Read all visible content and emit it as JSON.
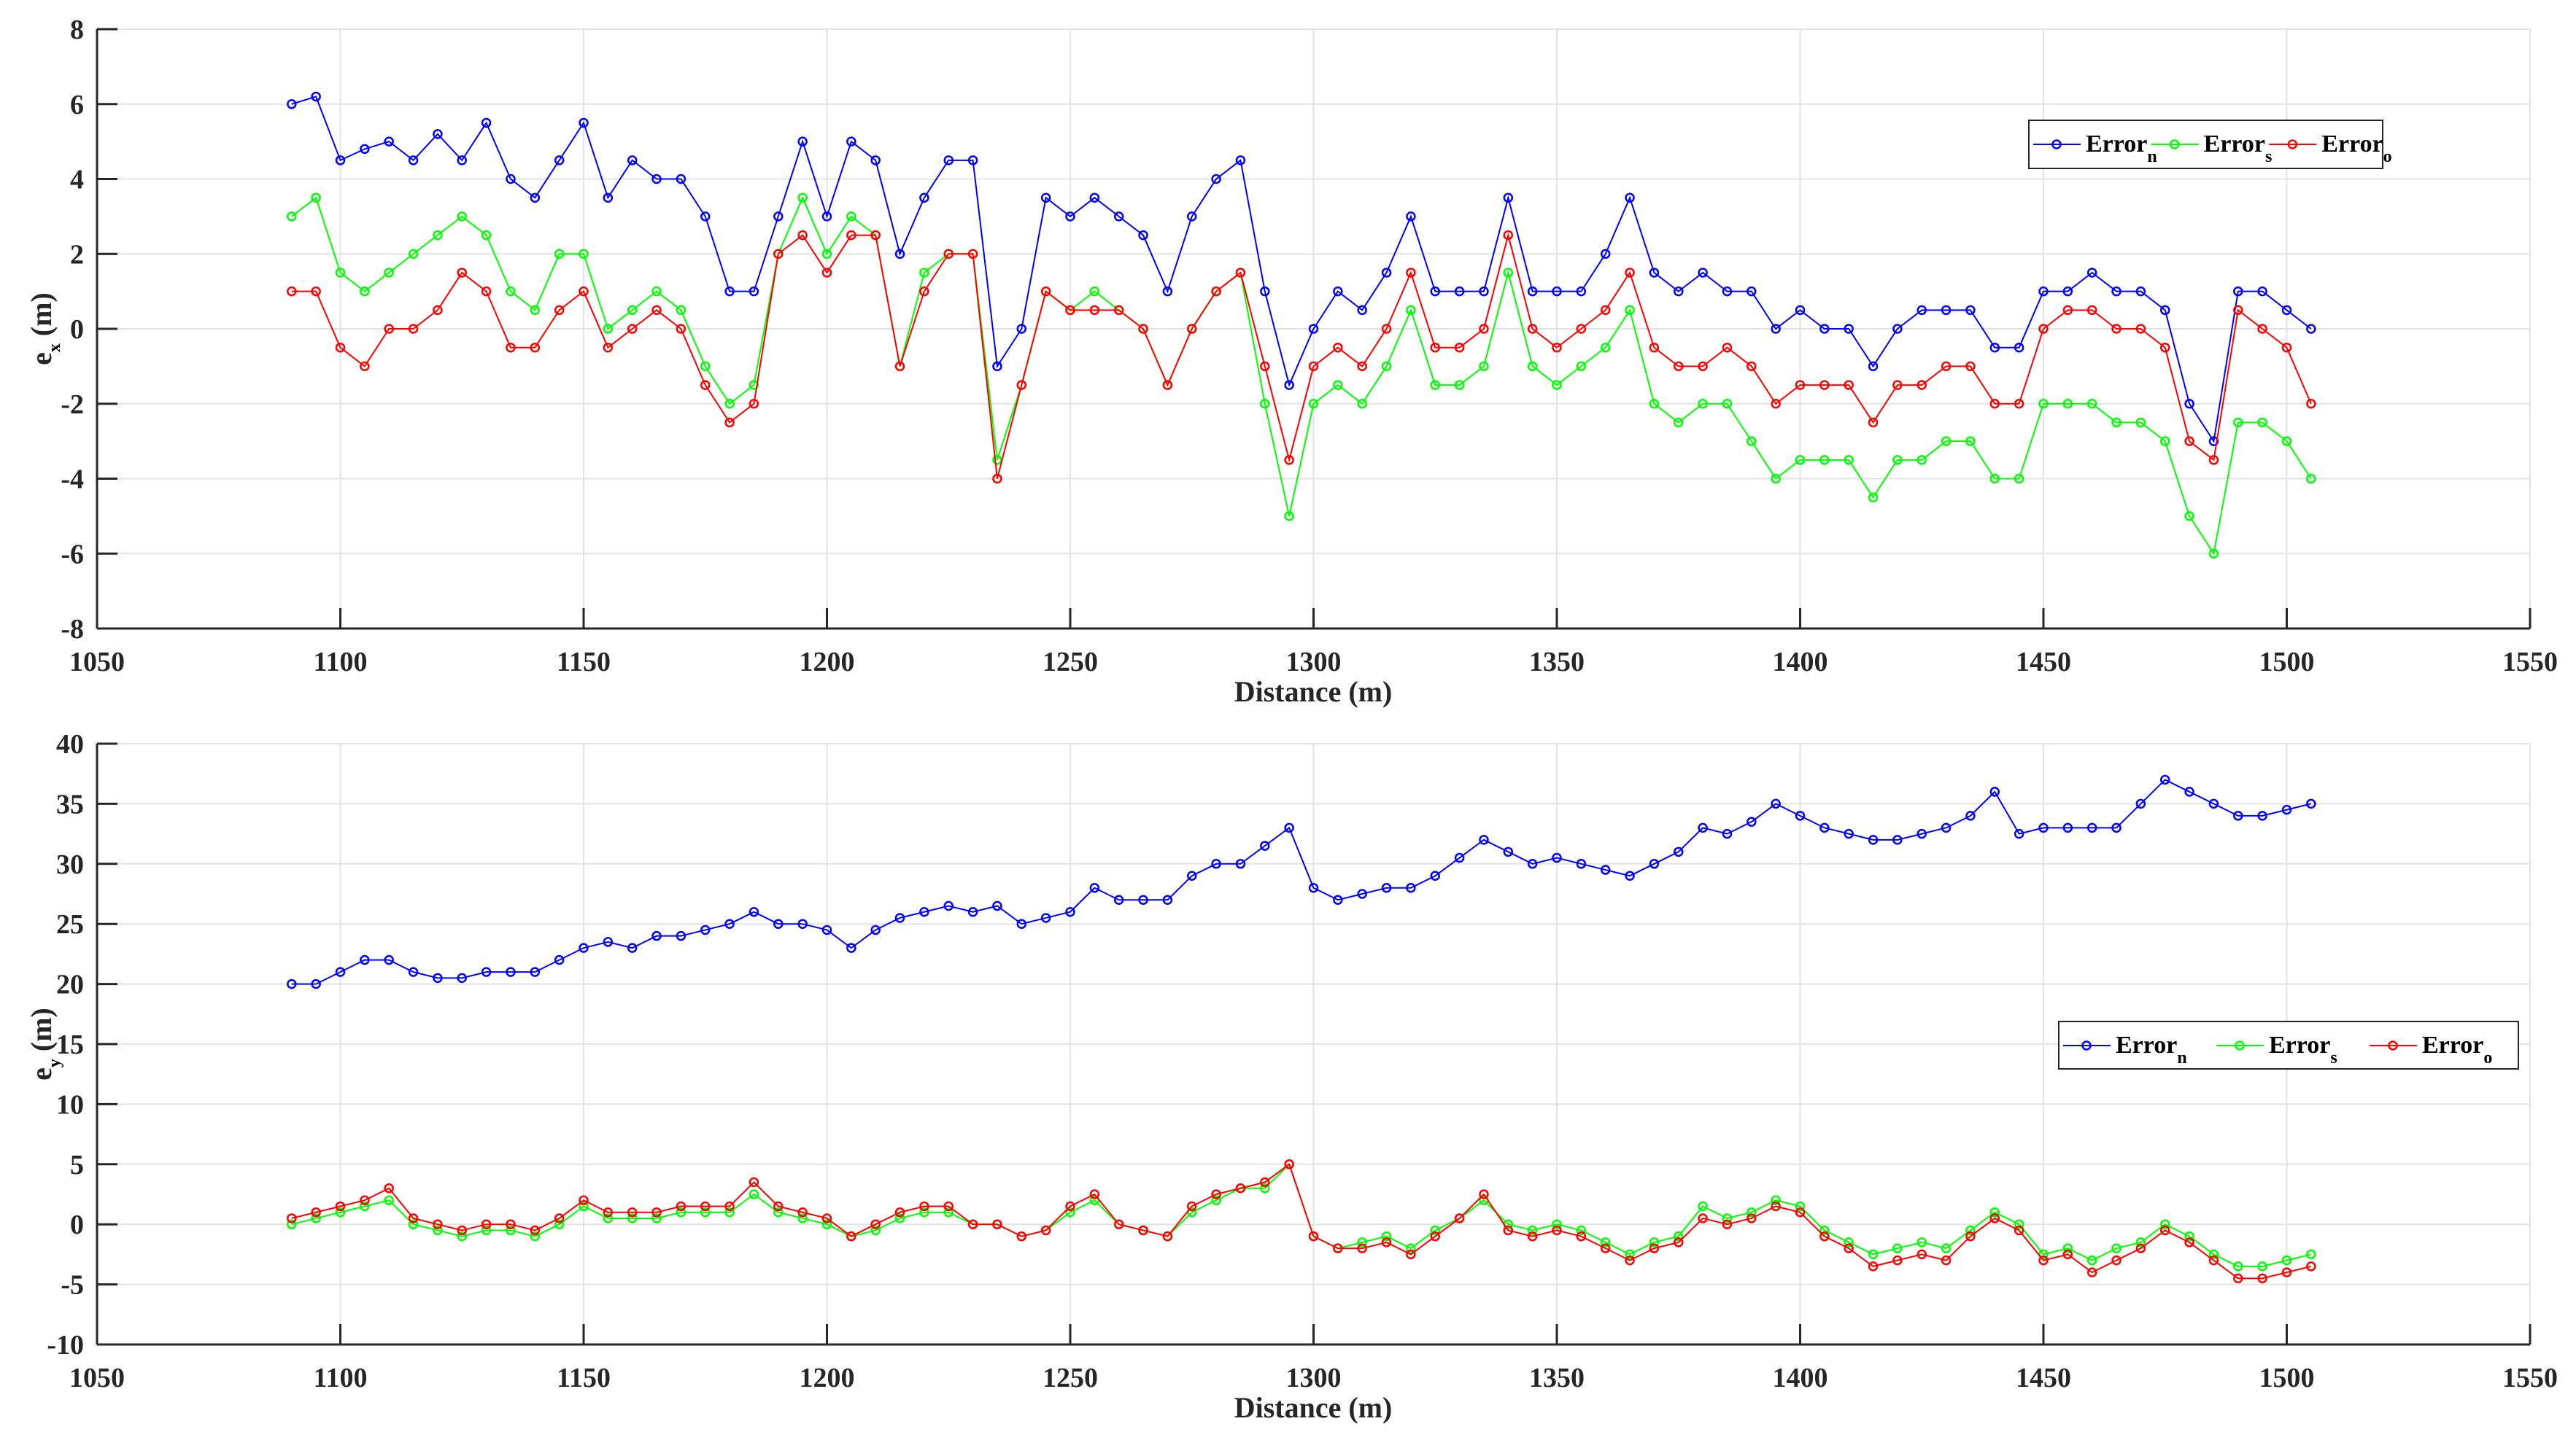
{
  "chart_data": [
    {
      "type": "line",
      "xlabel": "Distance (m)",
      "ylabel": "e",
      "ylabel_sub": "x",
      "ylabel_unit": "(m)",
      "xlim": [
        1050,
        1550
      ],
      "ylim": [
        -8,
        8
      ],
      "xticks": [
        1050,
        1100,
        1150,
        1200,
        1250,
        1300,
        1350,
        1400,
        1450,
        1500,
        1550
      ],
      "yticks": [
        -8,
        -6,
        -4,
        -2,
        0,
        2,
        4,
        6,
        8
      ],
      "grid": true,
      "legend_placement": "top-right",
      "x": [
        1090,
        1095,
        1100,
        1105,
        1110,
        1115,
        1120,
        1125,
        1130,
        1135,
        1140,
        1145,
        1150,
        1155,
        1160,
        1165,
        1170,
        1175,
        1180,
        1185,
        1190,
        1195,
        1200,
        1205,
        1210,
        1215,
        1220,
        1225,
        1230,
        1235,
        1240,
        1245,
        1250,
        1255,
        1260,
        1265,
        1270,
        1275,
        1280,
        1285,
        1290,
        1295,
        1300,
        1305,
        1310,
        1315,
        1320,
        1325,
        1330,
        1335,
        1340,
        1345,
        1350,
        1355,
        1360,
        1365,
        1370,
        1375,
        1380,
        1385,
        1390,
        1395,
        1400,
        1405,
        1410,
        1415,
        1420,
        1425,
        1430,
        1435,
        1440,
        1445,
        1450,
        1455,
        1460,
        1465,
        1470,
        1475,
        1480,
        1485,
        1490,
        1495,
        1500,
        1505
      ],
      "series": [
        {
          "name": "Error",
          "sub": "n",
          "color": "#0000ff",
          "values": [
            6,
            6.2,
            4.5,
            4.8,
            5,
            4.5,
            5.2,
            4.5,
            5.5,
            4,
            3.5,
            4.5,
            5.5,
            3.5,
            4.5,
            4,
            4,
            3,
            1,
            1,
            3,
            5,
            3,
            5,
            4.5,
            2,
            3.5,
            4.5,
            4.5,
            -1,
            0,
            3.5,
            3,
            3.5,
            3,
            2.5,
            1,
            3,
            4,
            4.5,
            1,
            -1.5,
            0,
            1,
            0.5,
            1.5,
            3,
            1,
            1,
            1,
            3.5,
            1,
            1,
            1,
            2,
            3.5,
            1.5,
            1,
            1.5,
            1,
            1,
            0,
            0.5,
            0,
            0,
            -1,
            0,
            0.5,
            0.5,
            0.5,
            -0.5,
            -0.5,
            1,
            1,
            1.5,
            1,
            1,
            0.5,
            -2,
            -3,
            1,
            1,
            0.5,
            0
          ]
        },
        {
          "name": "Error",
          "sub": "s",
          "color": "#00ff00",
          "values": [
            3,
            3.5,
            1.5,
            1,
            1.5,
            2,
            2.5,
            3,
            2.5,
            1,
            0.5,
            2,
            2,
            0,
            0.5,
            1,
            0.5,
            -1,
            -2,
            -1.5,
            2,
            3.5,
            2,
            3,
            2.5,
            -1,
            1.5,
            2,
            2,
            -3.5,
            -1.5,
            1,
            0.5,
            1,
            0.5,
            0,
            -1.5,
            0,
            1,
            1.5,
            -2,
            -5,
            -2,
            -1.5,
            -2,
            -1,
            0.5,
            -1.5,
            -1.5,
            -1,
            1.5,
            -1,
            -1.5,
            -1,
            -0.5,
            0.5,
            -2,
            -2.5,
            -2,
            -2,
            -3,
            -4,
            -3.5,
            -3.5,
            -3.5,
            -4.5,
            -3.5,
            -3.5,
            -3,
            -3,
            -4,
            -4,
            -2,
            -2,
            -2,
            -2.5,
            -2.5,
            -3,
            -5,
            -6,
            -2.5,
            -2.5,
            -3,
            -4
          ]
        },
        {
          "name": "Error",
          "sub": "o",
          "color": "#ff0000",
          "values": [
            1,
            1,
            -0.5,
            -1,
            0,
            0,
            0.5,
            1.5,
            1,
            -0.5,
            -0.5,
            0.5,
            1,
            -0.5,
            0,
            0.5,
            0,
            -1.5,
            -2.5,
            -2,
            2,
            2.5,
            1.5,
            2.5,
            2.5,
            -1,
            1,
            2,
            2,
            -4,
            -1.5,
            1,
            0.5,
            0.5,
            0.5,
            0,
            -1.5,
            0,
            1,
            1.5,
            -1,
            -3.5,
            -1,
            -0.5,
            -1,
            0,
            1.5,
            -0.5,
            -0.5,
            0,
            2.5,
            0,
            -0.5,
            0,
            0.5,
            1.5,
            -0.5,
            -1,
            -1,
            -0.5,
            -1,
            -2,
            -1.5,
            -1.5,
            -1.5,
            -2.5,
            -1.5,
            -1.5,
            -1,
            -1,
            -2,
            -2,
            0,
            0.5,
            0.5,
            0,
            0,
            -0.5,
            -3,
            -3.5,
            0.5,
            0,
            -0.5,
            -2
          ]
        }
      ]
    },
    {
      "type": "line",
      "xlabel": "Distance (m)",
      "ylabel": "e",
      "ylabel_sub": "y",
      "ylabel_unit": "(m)",
      "xlim": [
        1050,
        1550
      ],
      "ylim": [
        -10,
        40
      ],
      "xticks": [
        1050,
        1100,
        1150,
        1200,
        1250,
        1300,
        1350,
        1400,
        1450,
        1500,
        1550
      ],
      "yticks": [
        -10,
        -5,
        0,
        5,
        10,
        15,
        20,
        25,
        30,
        35,
        40
      ],
      "grid": true,
      "legend_placement": "right",
      "x": [
        1090,
        1095,
        1100,
        1105,
        1110,
        1115,
        1120,
        1125,
        1130,
        1135,
        1140,
        1145,
        1150,
        1155,
        1160,
        1165,
        1170,
        1175,
        1180,
        1185,
        1190,
        1195,
        1200,
        1205,
        1210,
        1215,
        1220,
        1225,
        1230,
        1235,
        1240,
        1245,
        1250,
        1255,
        1260,
        1265,
        1270,
        1275,
        1280,
        1285,
        1290,
        1295,
        1300,
        1305,
        1310,
        1315,
        1320,
        1325,
        1330,
        1335,
        1340,
        1345,
        1350,
        1355,
        1360,
        1365,
        1370,
        1375,
        1380,
        1385,
        1390,
        1395,
        1400,
        1405,
        1410,
        1415,
        1420,
        1425,
        1430,
        1435,
        1440,
        1445,
        1450,
        1455,
        1460,
        1465,
        1470,
        1475,
        1480,
        1485,
        1490,
        1495,
        1500,
        1505
      ],
      "series": [
        {
          "name": "Error",
          "sub": "n",
          "color": "#0000ff",
          "values": [
            20,
            20,
            21,
            22,
            22,
            21,
            20.5,
            20.5,
            21,
            21,
            21,
            22,
            23,
            23.5,
            23,
            24,
            24,
            24.5,
            25,
            26,
            25,
            25,
            24.5,
            23,
            24.5,
            25.5,
            26,
            26.5,
            26,
            26.5,
            25,
            25.5,
            26,
            28,
            27,
            27,
            27,
            29,
            30,
            30,
            31.5,
            33,
            28,
            27,
            27.5,
            28,
            28,
            29,
            30.5,
            32,
            31,
            30,
            30.5,
            30,
            29.5,
            29,
            30,
            31,
            33,
            32.5,
            33.5,
            35,
            34,
            33,
            32.5,
            32,
            32,
            32.5,
            33,
            34,
            36,
            32.5,
            33,
            33,
            33,
            33,
            35,
            37,
            36,
            35,
            34,
            34,
            34.5,
            35
          ]
        },
        {
          "name": "Error",
          "sub": "s",
          "color": "#00ff00",
          "values": [
            0,
            0.5,
            1,
            1.5,
            2,
            0,
            -0.5,
            -1,
            -0.5,
            -0.5,
            -1,
            0,
            1.5,
            0.5,
            0.5,
            0.5,
            1,
            1,
            1,
            2.5,
            1,
            0.5,
            0,
            -1,
            -0.5,
            0.5,
            1,
            1,
            0,
            0,
            -1,
            -0.5,
            1,
            2,
            0,
            -0.5,
            -1,
            1,
            2,
            3,
            3,
            5,
            -1,
            -2,
            -1.5,
            -1,
            -2,
            -0.5,
            0.5,
            2,
            0,
            -0.5,
            0,
            -0.5,
            -1.5,
            -2.5,
            -1.5,
            -1,
            1.5,
            0.5,
            1,
            2,
            1.5,
            -0.5,
            -1.5,
            -2.5,
            -2,
            -1.5,
            -2,
            -0.5,
            1,
            0,
            -2.5,
            -2,
            -3,
            -2,
            -1.5,
            0,
            -1,
            -2.5,
            -3.5,
            -3.5,
            -3,
            -2.5
          ]
        },
        {
          "name": "Error",
          "sub": "o",
          "color": "#ff0000",
          "values": [
            0.5,
            1,
            1.5,
            2,
            3,
            0.5,
            0,
            -0.5,
            0,
            0,
            -0.5,
            0.5,
            2,
            1,
            1,
            1,
            1.5,
            1.5,
            1.5,
            3.5,
            1.5,
            1,
            0.5,
            -1,
            0,
            1,
            1.5,
            1.5,
            0,
            0,
            -1,
            -0.5,
            1.5,
            2.5,
            0,
            -0.5,
            -1,
            1.5,
            2.5,
            3,
            3.5,
            5,
            -1,
            -2,
            -2,
            -1.5,
            -2.5,
            -1,
            0.5,
            2.5,
            -0.5,
            -1,
            -0.5,
            -1,
            -2,
            -3,
            -2,
            -1.5,
            0.5,
            0,
            0.5,
            1.5,
            1,
            -1,
            -2,
            -3.5,
            -3,
            -2.5,
            -3,
            -1,
            0.5,
            -0.5,
            -3,
            -2.5,
            -4,
            -3,
            -2,
            -0.5,
            -1.5,
            -3,
            -4.5,
            -4.5,
            -4,
            -3.5
          ]
        }
      ]
    }
  ]
}
